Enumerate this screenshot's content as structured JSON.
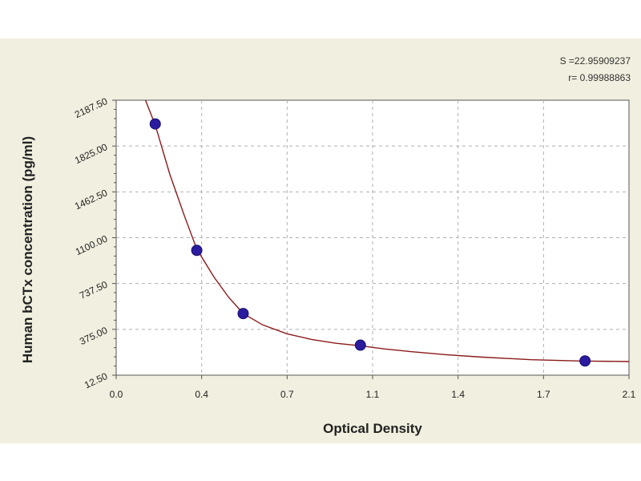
{
  "chart_data": {
    "type": "scatter",
    "xlabel": "Optical Density",
    "ylabel": "Human bCTx concentration (pg/ml)",
    "xlim": [
      0.0,
      2.1
    ],
    "ylim": [
      12.5,
      2187.5
    ],
    "x_ticks": [
      "0.0",
      "0.4",
      "0.7",
      "1.1",
      "1.4",
      "1.7",
      "2.1"
    ],
    "x_tick_values": [
      0.0,
      0.35,
      0.7,
      1.05,
      1.4,
      1.75,
      2.1
    ],
    "y_ticks": [
      "12.50",
      "375.00",
      "737.50",
      "1100.00",
      "1462.50",
      "1825.00",
      "2187.50"
    ],
    "y_tick_values": [
      12.5,
      375.0,
      737.5,
      1100.0,
      1462.5,
      1825.0,
      2187.5
    ],
    "grid": true,
    "points": [
      {
        "x": 0.16,
        "y": 2000
      },
      {
        "x": 0.33,
        "y": 1000
      },
      {
        "x": 0.52,
        "y": 500
      },
      {
        "x": 1.0,
        "y": 250
      },
      {
        "x": 1.92,
        "y": 125
      }
    ],
    "fit_curve": [
      {
        "x": 0.12,
        "y": 2200
      },
      {
        "x": 0.16,
        "y": 1990
      },
      {
        "x": 0.22,
        "y": 1600
      },
      {
        "x": 0.28,
        "y": 1270
      },
      {
        "x": 0.33,
        "y": 1010
      },
      {
        "x": 0.4,
        "y": 790
      },
      {
        "x": 0.46,
        "y": 630
      },
      {
        "x": 0.52,
        "y": 500
      },
      {
        "x": 0.6,
        "y": 410
      },
      {
        "x": 0.7,
        "y": 340
      },
      {
        "x": 0.8,
        "y": 295
      },
      {
        "x": 0.9,
        "y": 265
      },
      {
        "x": 1.0,
        "y": 245
      },
      {
        "x": 1.1,
        "y": 220
      },
      {
        "x": 1.2,
        "y": 200
      },
      {
        "x": 1.35,
        "y": 175
      },
      {
        "x": 1.5,
        "y": 155
      },
      {
        "x": 1.7,
        "y": 135
      },
      {
        "x": 1.9,
        "y": 125
      },
      {
        "x": 2.1,
        "y": 120
      }
    ],
    "stats": {
      "s": "S =22.95909237",
      "r": "r= 0.99988863"
    },
    "colors": {
      "background": "#f1efdf",
      "plot_bg": "#ffffff",
      "grid": "#b0b0b0",
      "curve": "#8b1a1a",
      "point": "#2b1b9e"
    }
  }
}
